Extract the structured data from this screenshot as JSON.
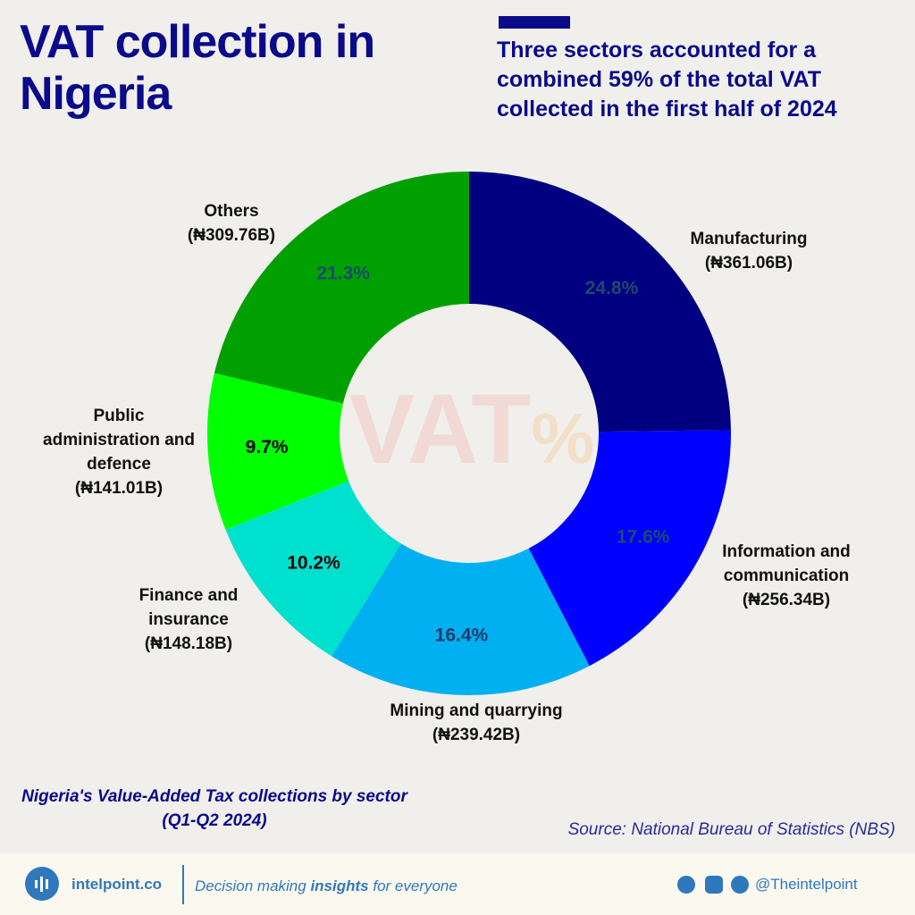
{
  "chart_data": {
    "type": "pie",
    "donut": true,
    "title": "VAT collection in Nigeria",
    "subtitle": "Three sectors accounted for a combined 59% of the total VAT collected in the first half of 2024",
    "caption": "Nigeria's Value-Added Tax collections by sector (Q1-Q2 2024)",
    "source": "Source: National Bureau of Statistics (NBS)",
    "watermark": [
      "VAT",
      "%"
    ],
    "categories": [
      "Manufacturing",
      "Information and communication",
      "Mining and quarrying",
      "Finance and insurance",
      "Public administration and defence",
      "Others"
    ],
    "values": [
      24.8,
      17.6,
      16.4,
      10.2,
      9.7,
      21.3
    ],
    "value_labels": [
      "24.8%",
      "17.6%",
      "16.4%",
      "10.2%",
      "9.7%",
      "21.3%"
    ],
    "amount_labels": [
      "(₦361.06B)",
      "(₦256.34B)",
      "(₦239.42B)",
      "(₦148.18B)",
      "(₦141.01B)",
      "(₦309.76B)"
    ],
    "colors": [
      "#000080",
      "#0000ff",
      "#00b0f0",
      "#00e0cf",
      "#00ff00",
      "#00a000"
    ],
    "value_label_colors": [
      "#1b4a6e",
      "#1b4a6e",
      "#1b3a6e",
      "#000000",
      "#000000",
      "#1b4a6e"
    ]
  },
  "footer": {
    "site": "intelpoint.co",
    "tagline": [
      "Decision making ",
      "insights",
      " for everyone"
    ],
    "handle": "@Theintelpoint"
  }
}
